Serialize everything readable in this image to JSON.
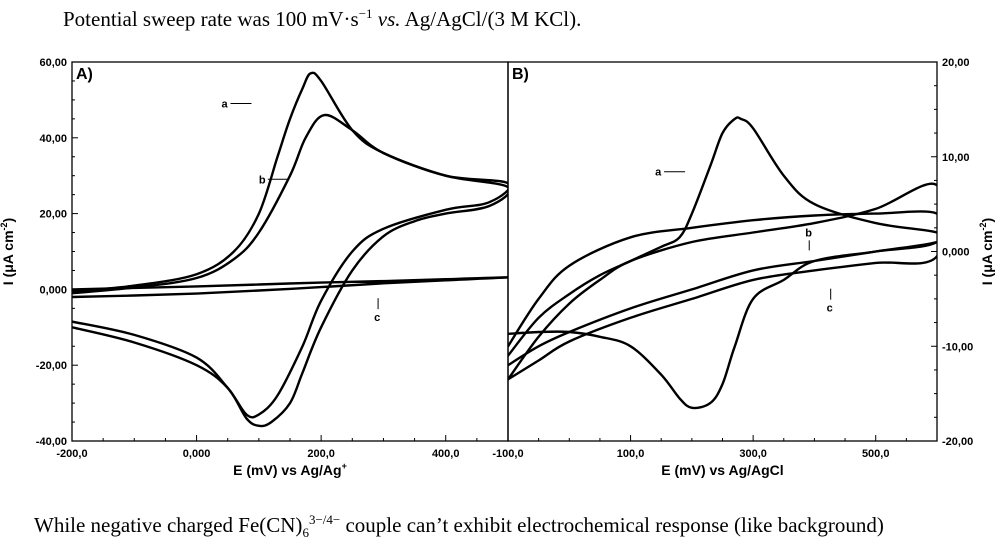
{
  "caption_top": {
    "pre": "Potential sweep rate was 100 mV·s",
    "sup": "−1",
    "vs": "vs.",
    "post": " Ag/AgCl/(3 M KCl)."
  },
  "caption_bottom": {
    "pre": "While negative charged Fe(CN)",
    "sub": "6",
    "sup": "3−/4−",
    "post": " couple can’t exhibit electrochemical response (like background)"
  },
  "chart_data": [
    {
      "type": "line",
      "panel": "A)",
      "xlabel": "E (mV) vs Ag/Ag",
      "xlabel_sup": "+",
      "ylabel": "I (μA cm",
      "ylabel_sup": "-2",
      "ylabel_end": ")",
      "xlim": [
        -200,
        500
      ],
      "ylim": [
        -40,
        60
      ],
      "xticks": [
        -200,
        0,
        200,
        400
      ],
      "xtick_labels": [
        "-200,0",
        "0,000",
        "200,0",
        "400,0"
      ],
      "yticks": [
        -40,
        -20,
        0,
        20,
        40,
        60
      ],
      "ytick_labels": [
        "-40,00",
        "-20,00",
        "0,000",
        "20,00",
        "40,00",
        "60,00"
      ],
      "series": [
        {
          "name": "a",
          "x": [
            -200,
            -100,
            0,
            60,
            100,
            130,
            150,
            170,
            183,
            200,
            250,
            300,
            400,
            500,
            470,
            400,
            350,
            300,
            250,
            200,
            170,
            150,
            120,
            100,
            80,
            50,
            0,
            -100,
            -200
          ],
          "y": [
            -0.5,
            1,
            4,
            10,
            20,
            35,
            45,
            53,
            57,
            55,
            42,
            36,
            30,
            27,
            22,
            20,
            18,
            14,
            5,
            -10,
            -22,
            -30,
            -35,
            -36,
            -34,
            -26,
            -20,
            -14,
            -10
          ]
        },
        {
          "name": "b",
          "x": [
            -200,
            -100,
            0,
            60,
            100,
            150,
            175,
            205,
            250,
            300,
            400,
            500,
            470,
            400,
            300,
            250,
            200,
            170,
            130,
            100,
            80,
            50,
            0,
            -100,
            -200
          ],
          "y": [
            -1,
            0.5,
            3,
            8,
            15,
            30,
            40,
            46,
            42,
            36,
            30,
            28,
            23,
            21,
            16,
            10,
            -3,
            -15,
            -28,
            -33,
            -33,
            -26,
            -18,
            -12,
            -8.5
          ]
        },
        {
          "name": "c",
          "x": [
            -200,
            -100,
            0,
            100,
            200,
            300,
            400,
            500,
            400,
            300,
            200,
            100,
            0,
            -100,
            -200
          ],
          "y": [
            0,
            0.4,
            0.8,
            1.3,
            1.8,
            2.2,
            2.7,
            3.2,
            2.4,
            1.6,
            0.6,
            -0.3,
            -1.1,
            -1.6,
            -2
          ]
        }
      ],
      "label_positions": [
        {
          "name": "a",
          "at": [
            40,
            48
          ]
        },
        {
          "name": "b",
          "at": [
            100,
            28
          ]
        },
        {
          "name": "c",
          "at": [
            285,
            -6
          ]
        }
      ]
    },
    {
      "type": "line",
      "panel": "B)",
      "xlabel": "E (mV) vs Ag/AgCl",
      "ylabel": "I (μA cm",
      "ylabel_sup": "-2",
      "ylabel_end": ")",
      "xlim": [
        -100,
        600
      ],
      "ylim": [
        -20,
        20
      ],
      "xticks": [
        -100,
        100,
        300,
        500
      ],
      "xtick_labels": [
        "-100,0",
        "100,0",
        "300,0",
        "500,0"
      ],
      "yticks": [
        -20,
        -10,
        0,
        10,
        20
      ],
      "ytick_labels": [
        "-20,00",
        "-10,00",
        "0,000",
        "10,00",
        "20,00"
      ],
      "series": [
        {
          "name": "a",
          "x": [
            -100,
            -50,
            0,
            50,
            100,
            150,
            180,
            200,
            230,
            250,
            270,
            280,
            300,
            350,
            400,
            500,
            600,
            600,
            500,
            400,
            350,
            300,
            270,
            250,
            230,
            200,
            180,
            150,
            100,
            50,
            0,
            -50,
            -100
          ],
          "y": [
            -11,
            -7,
            -4.5,
            -2.5,
            -1,
            0.5,
            1.5,
            4,
            9,
            12.5,
            14,
            14,
            13,
            8,
            5,
            3,
            2,
            1,
            0,
            -1,
            -3,
            -5,
            -10,
            -14,
            -16,
            -16.5,
            -15.5,
            -13,
            -10,
            -9,
            -8.5,
            -8.5,
            -8.7
          ]
        },
        {
          "name": "b",
          "x": [
            -100,
            -50,
            0,
            100,
            200,
            300,
            400,
            500,
            600,
            600,
            500,
            400,
            300,
            200,
            100,
            0,
            -50,
            -100
          ],
          "y": [
            -10,
            -5,
            -1.5,
            1.5,
            2.5,
            3.3,
            3.8,
            4,
            4,
            1,
            0,
            -1,
            -2,
            -4,
            -6,
            -8.5,
            -10,
            -12
          ]
        },
        {
          "name": "c",
          "x": [
            -100,
            -50,
            0,
            50,
            100,
            200,
            300,
            400,
            500,
            600,
            600,
            500,
            400,
            300,
            200,
            100,
            0,
            -50,
            -100
          ],
          "y": [
            -13.5,
            -9,
            -5.5,
            -3,
            -1,
            1,
            2,
            3,
            4.5,
            7,
            -0.5,
            -1.2,
            -2,
            -3,
            -5,
            -7,
            -9.5,
            -11.5,
            -13.5
          ]
        }
      ],
      "label_positions": [
        {
          "name": "a",
          "at": [
            140,
            8
          ]
        },
        {
          "name": "b",
          "at": [
            385,
            1.6
          ]
        },
        {
          "name": "c",
          "at": [
            420,
            -5.4
          ]
        }
      ]
    }
  ]
}
